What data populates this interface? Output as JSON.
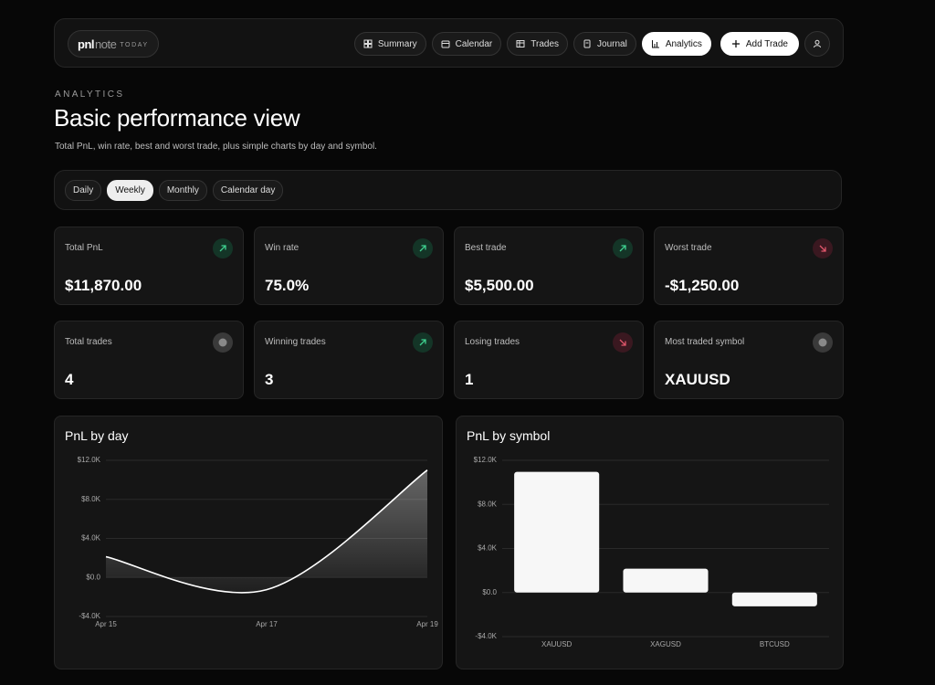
{
  "nav": {
    "logo": [
      "pnl",
      "note",
      "TODAY"
    ],
    "items": [
      "Summary",
      "Calendar",
      "Trades",
      "Journal",
      "Analytics"
    ],
    "active": 4,
    "add_trade": "Add Trade"
  },
  "header": {
    "eyebrow": "ANALYTICS",
    "title": "Basic performance view",
    "subtitle": "Total PnL, win rate, best and worst trade, plus simple charts by day and symbol."
  },
  "periods": {
    "items": [
      "Daily",
      "Weekly",
      "Monthly",
      "Calendar day"
    ],
    "active": 1
  },
  "stats": [
    {
      "label": "Total PnL",
      "value": "$11,870.00",
      "trend": "up"
    },
    {
      "label": "Win rate",
      "value": "75.0%",
      "trend": "up"
    },
    {
      "label": "Best trade",
      "value": "$5,500.00",
      "trend": "up"
    },
    {
      "label": "Worst trade",
      "value": "-$1,250.00",
      "trend": "down"
    },
    {
      "label": "Total trades",
      "value": "4",
      "trend": "neutral"
    },
    {
      "label": "Winning trades",
      "value": "3",
      "trend": "up"
    },
    {
      "label": "Losing trades",
      "value": "1",
      "trend": "down"
    },
    {
      "label": "Most traded symbol",
      "value": "XAUUSD",
      "trend": "neutral"
    }
  ],
  "chart_data": [
    {
      "type": "line",
      "title": "PnL by day",
      "categories": [
        "Apr 15",
        "Apr 17",
        "Apr 19"
      ],
      "values": [
        2120,
        -1250,
        11000
      ],
      "color": "#ffffff",
      "area": true,
      "ylim": [
        -4000,
        12000
      ],
      "yticks": [
        {
          "value": -4000,
          "label": "-$4.0K"
        },
        {
          "value": 0,
          "label": "$0.0"
        },
        {
          "value": 4000,
          "label": "$4.0K"
        },
        {
          "value": 8000,
          "label": "$8.0K"
        },
        {
          "value": 12000,
          "label": "$12.0K"
        }
      ],
      "grid": true
    },
    {
      "type": "bar",
      "title": "PnL by symbol",
      "categories": [
        "XAUUSD",
        "XAGUSD",
        "BTCUSD"
      ],
      "values": [
        10950,
        2170,
        -1250
      ],
      "color": "#f7f7f7",
      "ylim": [
        -4000,
        12000
      ],
      "yticks": [
        {
          "value": -4000,
          "label": "-$4.0K"
        },
        {
          "value": 0,
          "label": "$0.0"
        },
        {
          "value": 4000,
          "label": "$4.0K"
        },
        {
          "value": 8000,
          "label": "$8.0K"
        },
        {
          "value": 12000,
          "label": "$12.0K"
        }
      ],
      "grid": true
    }
  ]
}
